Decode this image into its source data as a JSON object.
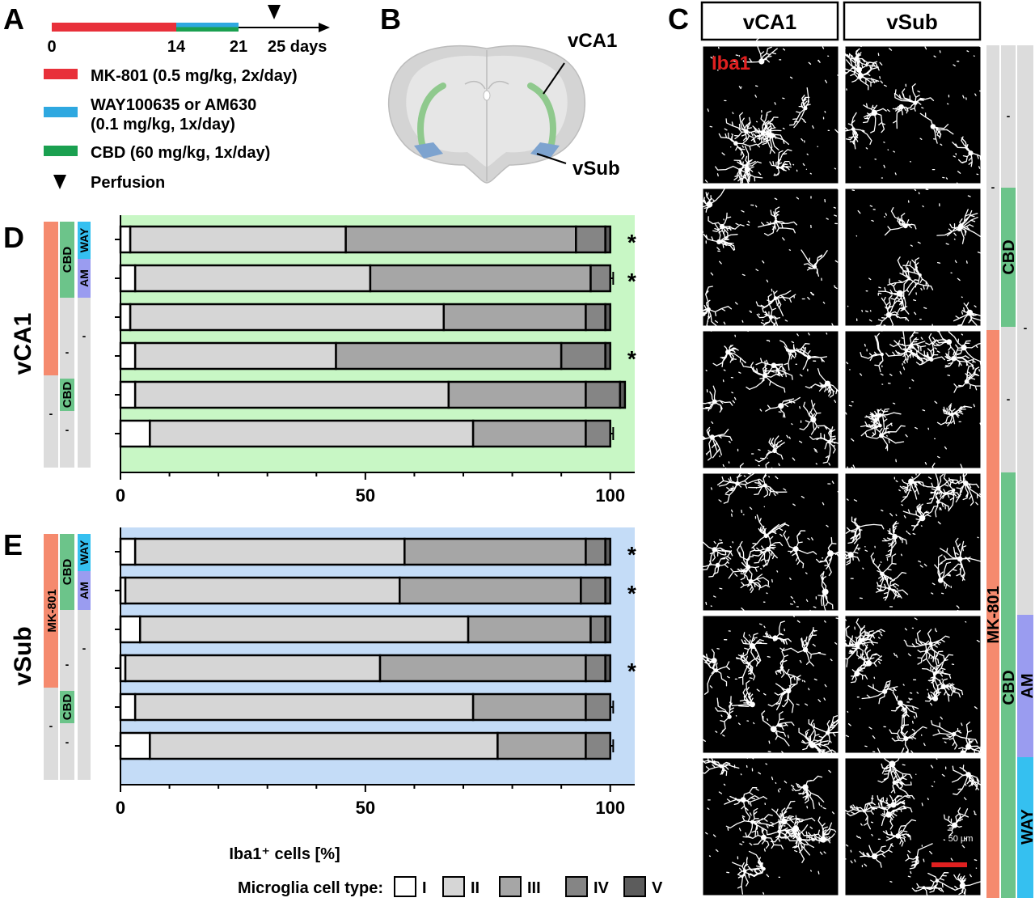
{
  "panel_labels": {
    "a": "A",
    "b": "B",
    "c": "C",
    "d": "D",
    "e": "E"
  },
  "timeline": {
    "ticks": [
      "0",
      "14",
      "21",
      "25 days"
    ],
    "tick_days": [
      0,
      14,
      21,
      25
    ],
    "end_day": 30,
    "colors": {
      "mk801": "#e8303a",
      "way_am": "#2ea8e0",
      "cbd": "#1aa050"
    },
    "legend": [
      {
        "label": "MK-801 (0.5 mg/kg, 2x/day)",
        "color": "#e8303a"
      },
      {
        "label": "WAY100635 or AM630",
        "label2": "(0.1 mg/kg, 1x/day)",
        "color": "#2ea8e0"
      },
      {
        "label": "CBD (60 mg/kg, 1x/day)",
        "color": "#1aa050"
      }
    ],
    "perfusion_label": "Perfusion"
  },
  "brain": {
    "vca1_label": "vCA1",
    "vsub_label": "vSub"
  },
  "micrographs": {
    "col_headers": [
      "vCA1",
      "vSub"
    ],
    "stain_label": "Iba1",
    "scale_text": "50 µm",
    "side_labels": {
      "mk801": "MK-801",
      "cbd_top": "CBD",
      "cbd_bottom": "CBD",
      "am": "AM",
      "way": "WAY",
      "dash": "-"
    }
  },
  "treatment_strip": {
    "mk801": "MK-801",
    "cbd": "CBD",
    "am": "AM",
    "way": "WAY",
    "dash": "-",
    "colors": {
      "mk801": "#f58a6e",
      "cbd": "#6cc48a",
      "am": "#9a9cf0",
      "way": "#35c0f0",
      "none": "#dcdcdc"
    }
  },
  "legend": {
    "title": "Microglia cell type:",
    "types": [
      {
        "label": "I",
        "color": "#ffffff"
      },
      {
        "label": "II",
        "color": "#d6d6d6"
      },
      {
        "label": "III",
        "color": "#a6a6a6"
      },
      {
        "label": "IV",
        "color": "#858585"
      },
      {
        "label": "V",
        "color": "#5c5c5c"
      }
    ]
  },
  "chart_data": [
    {
      "type": "bar",
      "orientation": "horizontal",
      "stacked": true,
      "ylabel": "vCA1",
      "xlabel": "",
      "xlim": [
        0,
        105
      ],
      "xticks": [
        0,
        50,
        100
      ],
      "background": "#c8f7c5",
      "series_names": [
        "I",
        "II",
        "III",
        "IV",
        "V"
      ],
      "rows": [
        {
          "values": [
            2,
            44,
            47,
            6,
            1
          ],
          "significant": true
        },
        {
          "values": [
            3,
            48,
            45,
            4,
            0
          ],
          "significant": true
        },
        {
          "values": [
            2,
            64,
            29,
            4,
            1
          ],
          "significant": false
        },
        {
          "values": [
            3,
            41,
            46,
            9,
            1
          ],
          "significant": true
        },
        {
          "values": [
            3,
            64,
            28,
            7,
            1
          ],
          "significant": false
        },
        {
          "values": [
            6,
            66,
            23,
            5,
            0
          ],
          "significant": false
        }
      ]
    },
    {
      "type": "bar",
      "orientation": "horizontal",
      "stacked": true,
      "ylabel": "vSub",
      "xlabel": "Iba1⁺ cells [%]",
      "xlim": [
        0,
        105
      ],
      "xticks": [
        0,
        50,
        100
      ],
      "background": "#c4dcf7",
      "series_names": [
        "I",
        "II",
        "III",
        "IV",
        "V"
      ],
      "rows": [
        {
          "values": [
            3,
            55,
            37,
            4,
            1
          ],
          "significant": true
        },
        {
          "values": [
            1,
            56,
            37,
            5,
            1
          ],
          "significant": true
        },
        {
          "values": [
            4,
            67,
            25,
            3,
            1
          ],
          "significant": false
        },
        {
          "values": [
            1,
            52,
            42,
            4,
            1
          ],
          "significant": true
        },
        {
          "values": [
            3,
            69,
            23,
            5,
            0
          ],
          "significant": false
        },
        {
          "values": [
            6,
            71,
            18,
            5,
            0
          ],
          "significant": false
        }
      ]
    }
  ]
}
